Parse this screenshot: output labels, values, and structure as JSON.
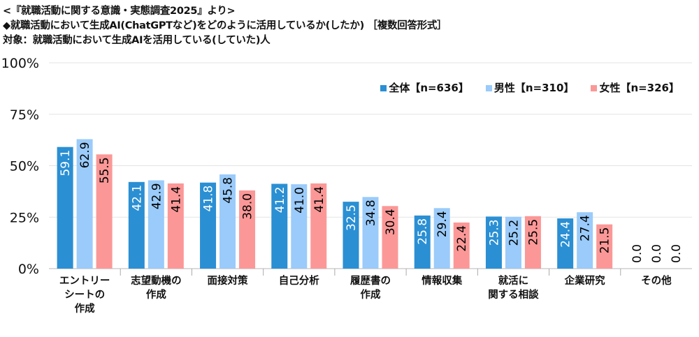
{
  "titles": {
    "line1": "<『就職活動に関する意識・実態調査2025』より>",
    "line2": "◆就職活動において生成AI(ChatGPTなど)をどのように活用しているか(したか) ［複数回答形式］",
    "line3": "対象：就職活動において生成AIを活用している(していた)人"
  },
  "chart_data": {
    "type": "bar",
    "title": "就職活動において生成AI(ChatGPTなど)をどのように活用しているか(したか)",
    "ylim": [
      0,
      100
    ],
    "yticks": [
      0,
      25,
      50,
      75,
      100
    ],
    "ytick_labels": [
      "0%",
      "25%",
      "50%",
      "75%",
      "100%"
    ],
    "grid": true,
    "legend_position": "top-right",
    "categories": [
      [
        "エントリー",
        "シートの",
        "作成"
      ],
      [
        "志望動機の",
        "作成"
      ],
      [
        "面接対策"
      ],
      [
        "自己分析"
      ],
      [
        "履歴書の",
        "作成"
      ],
      [
        "情報収集"
      ],
      [
        "就活に",
        "関する相談"
      ],
      [
        "企業研究"
      ],
      [
        "その他"
      ]
    ],
    "series": [
      {
        "name": "全体【n=636】",
        "color": "#2b8fd3",
        "label_color": "#ffffff",
        "values": [
          59.1,
          42.1,
          41.8,
          41.2,
          32.5,
          25.8,
          25.3,
          24.4,
          0.0
        ]
      },
      {
        "name": "男性【n=310】",
        "color": "#9acbfa",
        "label_color": "#000000",
        "values": [
          62.9,
          42.9,
          45.8,
          41.0,
          34.8,
          29.4,
          25.2,
          27.4,
          0.0
        ]
      },
      {
        "name": "女性【n=326】",
        "color": "#fb9897",
        "label_color": "#000000",
        "values": [
          55.5,
          41.4,
          38.0,
          41.4,
          30.4,
          22.4,
          25.5,
          21.5,
          0.0
        ]
      }
    ]
  }
}
